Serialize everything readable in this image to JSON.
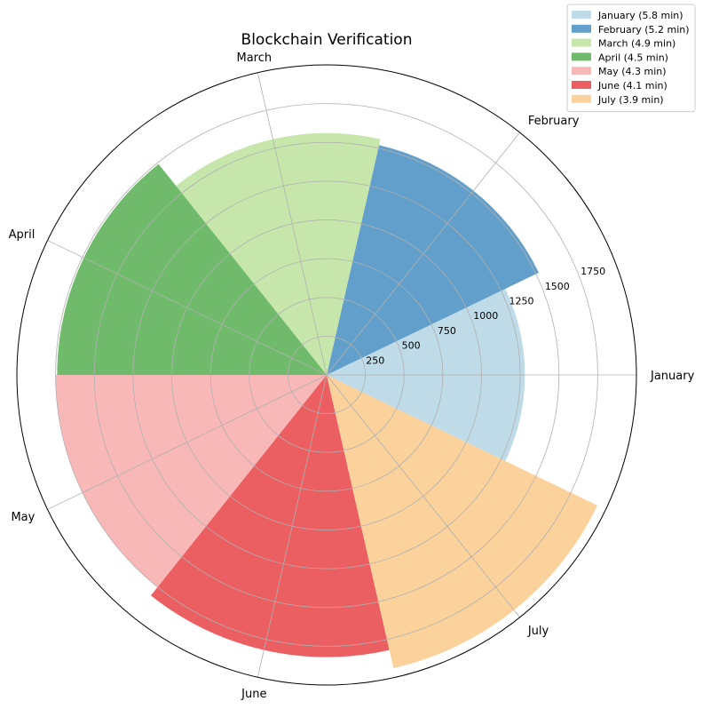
{
  "chart_data": {
    "type": "polar-bar",
    "title": "Blockchain Verification",
    "categories": [
      "January",
      "February",
      "March",
      "April",
      "May",
      "June",
      "July"
    ],
    "values": [
      1280,
      1520,
      1560,
      1740,
      1750,
      1820,
      1940
    ],
    "colors": [
      "#bfdbe8",
      "#62a0cb",
      "#c7e6ac",
      "#70bb6b",
      "#f9b8b8",
      "#eb5f62",
      "#fcd29c"
    ],
    "legend": {
      "placement": "top-right",
      "entries": [
        "January (5.8 min)",
        "February (5.2 min)",
        "March (4.9 min)",
        "April (4.5 min)",
        "May (4.3 min)",
        "June (4.1 min)",
        "July (3.9 min)"
      ]
    },
    "r_ticks": [
      250,
      500,
      750,
      1000,
      1250,
      1500,
      1750
    ],
    "r_max": 2000,
    "grid": true
  }
}
